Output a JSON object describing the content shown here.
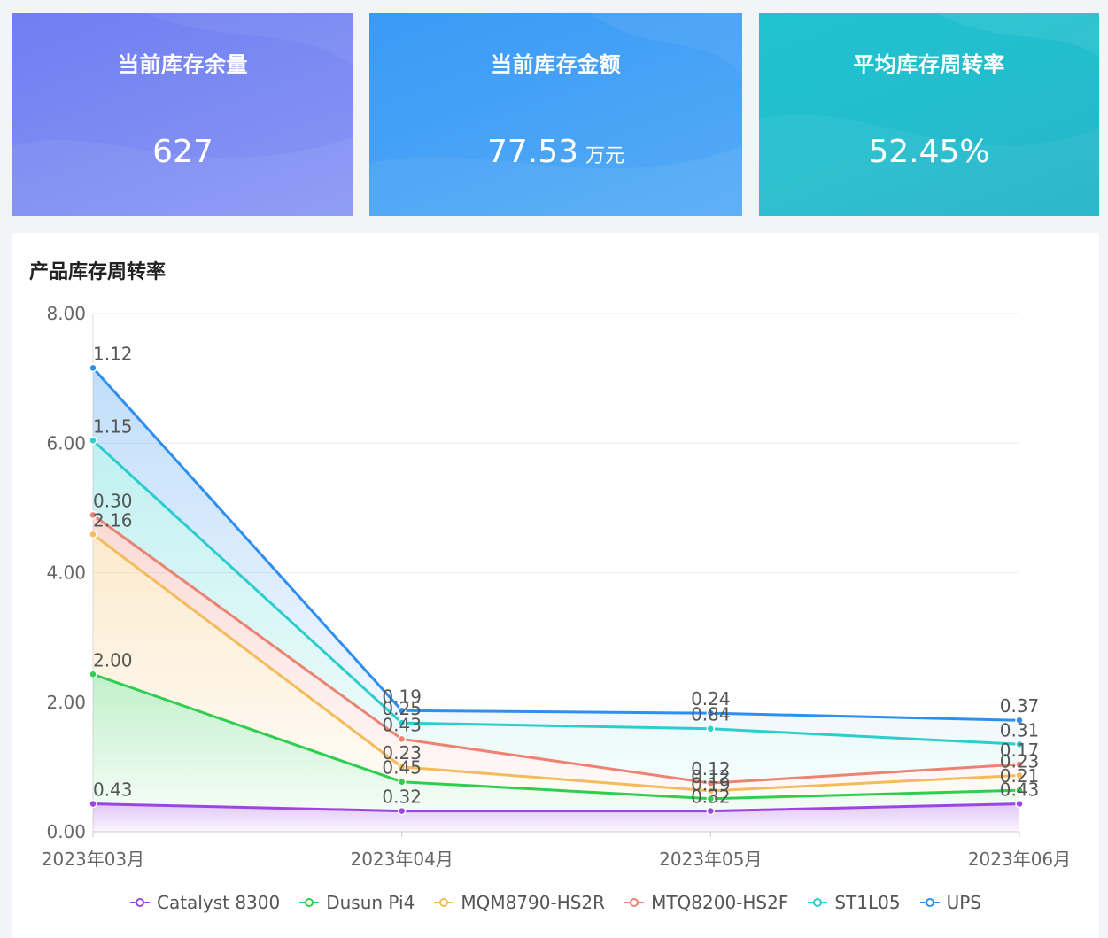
{
  "cards": [
    {
      "title": "当前库存余量",
      "value": "627",
      "unit": ""
    },
    {
      "title": "当前库存金额",
      "value": "77.53",
      "unit": "万元"
    },
    {
      "title": "平均库存周转率",
      "value": "52.45%",
      "unit": ""
    }
  ],
  "chart_title": "产品库存周转率",
  "chart_data": {
    "type": "area",
    "stacked": true,
    "categories": [
      "2023年03月",
      "2023年04月",
      "2023年05月",
      "2023年06月"
    ],
    "ylim": [
      0,
      8
    ],
    "yticks": [
      "0.00",
      "2.00",
      "4.00",
      "6.00",
      "8.00"
    ],
    "grid": true,
    "legend_position": "bottom",
    "series": [
      {
        "name": "Catalyst 8300",
        "color": "#9b45e4",
        "values": [
          0.43,
          0.32,
          0.32,
          0.43
        ],
        "labels": [
          "0.43",
          "0.32",
          "0.32",
          "0.43"
        ]
      },
      {
        "name": "Dusun Pi4",
        "color": "#2fce4f",
        "values": [
          2.0,
          0.45,
          0.19,
          0.21
        ],
        "labels": [
          "2.00",
          "0.45",
          "0.19",
          "0.21"
        ]
      },
      {
        "name": "MQM8790-HS2R",
        "color": "#f4bb5a",
        "values": [
          2.16,
          0.23,
          0.12,
          0.23
        ],
        "labels": [
          "2.16",
          "0.23",
          "0.12",
          "0.23"
        ]
      },
      {
        "name": "MTQ8200-HS2F",
        "color": "#ec8272",
        "values": [
          0.3,
          0.43,
          0.12,
          0.17
        ],
        "labels": [
          "0.30",
          "0.43",
          "0.12",
          "0.17"
        ]
      },
      {
        "name": "ST1L05",
        "color": "#2bcdcd",
        "values": [
          1.15,
          0.25,
          0.84,
          0.31
        ],
        "labels": [
          "1.15",
          "0.25",
          "0.84",
          "0.31"
        ]
      },
      {
        "name": "UPS",
        "color": "#2f8fef",
        "values": [
          1.12,
          0.19,
          0.24,
          0.37
        ],
        "labels": [
          "1.12",
          "0.19",
          "0.24",
          "0.37"
        ]
      }
    ]
  }
}
